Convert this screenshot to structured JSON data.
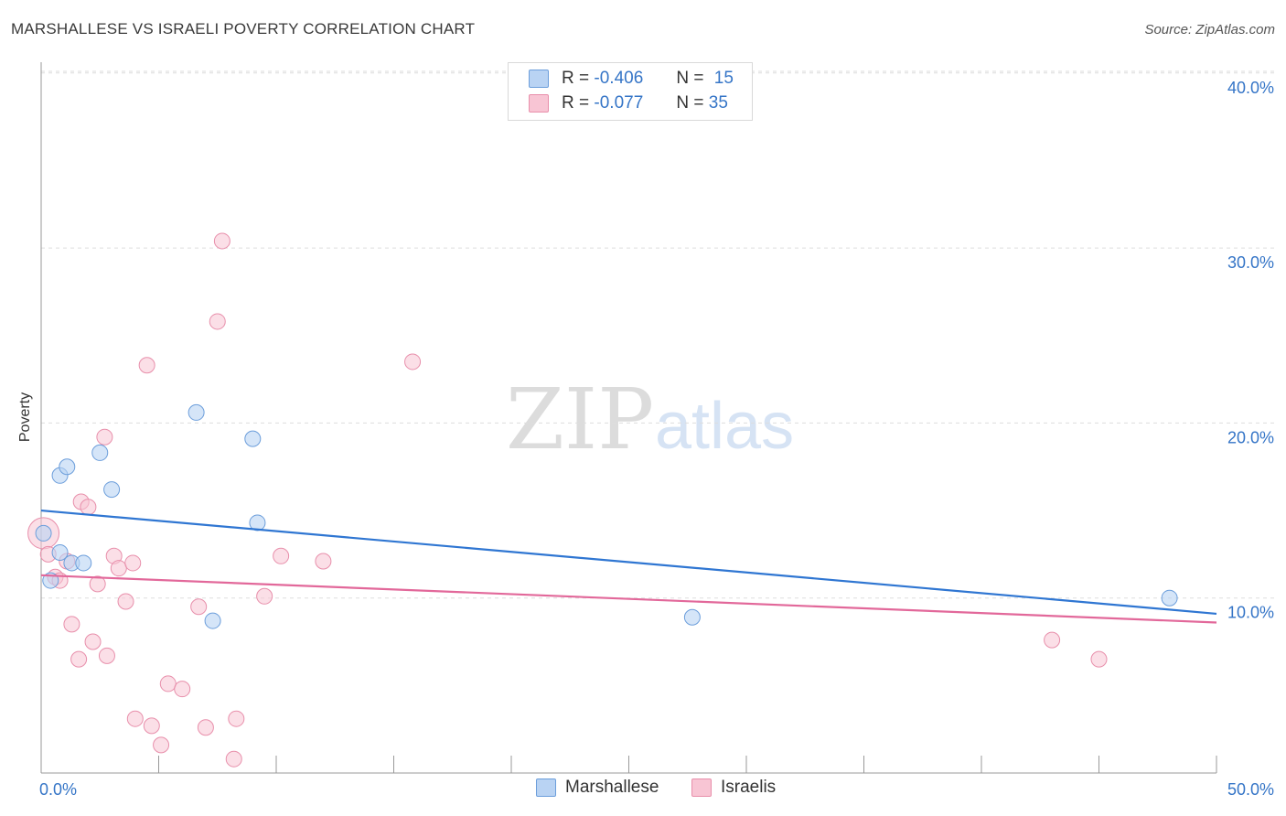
{
  "title": "MARSHALLESE VS ISRAELI POVERTY CORRELATION CHART",
  "source": "Source: ZipAtlas.com",
  "watermark": {
    "zip": "ZIP",
    "atlas": "atlas"
  },
  "legend": {
    "row1": {
      "r_label": "R =",
      "r_value": "-0.406",
      "n_label": "N =",
      "n_value": "15"
    },
    "row2": {
      "r_label": "R =",
      "r_value": "-0.077",
      "n_label": "N =",
      "n_value": "35"
    }
  },
  "bottom_legend": {
    "series1": "Marshallese",
    "series2": "Israelis"
  },
  "colors": {
    "blue_fill": "#b9d3f3",
    "blue_stroke": "#6c9edb",
    "blue_line": "#2f76d2",
    "pink_fill": "#f8c5d4",
    "pink_stroke": "#e88fab",
    "pink_line": "#e2689a",
    "tick_text": "#3575c7",
    "grid": "#dddddd"
  },
  "chart_data": {
    "type": "scatter",
    "title": "MARSHALLESE VS ISRAELI POVERTY CORRELATION CHART",
    "xlabel": "",
    "ylabel": "Poverty",
    "xlim": [
      0,
      50
    ],
    "ylim": [
      0,
      40
    ],
    "x_tick_labels": [
      "0.0%",
      "50.0%"
    ],
    "y_ticks": [
      10,
      20,
      30,
      40
    ],
    "y_tick_labels": [
      "10.0%",
      "20.0%",
      "30.0%",
      "40.0%"
    ],
    "series": [
      {
        "name": "Marshallese",
        "r": -0.406,
        "n": 15,
        "points": [
          {
            "x": 0.1,
            "y": 13.7
          },
          {
            "x": 0.4,
            "y": 11.0
          },
          {
            "x": 0.8,
            "y": 12.6
          },
          {
            "x": 0.8,
            "y": 17.0
          },
          {
            "x": 1.1,
            "y": 17.5
          },
          {
            "x": 1.3,
            "y": 12.0
          },
          {
            "x": 1.8,
            "y": 12.0
          },
          {
            "x": 2.5,
            "y": 18.3
          },
          {
            "x": 3.0,
            "y": 16.2
          },
          {
            "x": 6.6,
            "y": 20.6
          },
          {
            "x": 7.3,
            "y": 8.7
          },
          {
            "x": 9.0,
            "y": 19.1
          },
          {
            "x": 9.2,
            "y": 14.3
          },
          {
            "x": 27.7,
            "y": 8.9
          },
          {
            "x": 48.0,
            "y": 10.0
          }
        ],
        "trend": {
          "x": [
            0,
            50
          ],
          "y": [
            15.0,
            9.1
          ]
        }
      },
      {
        "name": "Israelis",
        "r": -0.077,
        "n": 35,
        "points": [
          {
            "x": 0.1,
            "y": 13.7,
            "large": true
          },
          {
            "x": 0.3,
            "y": 12.5
          },
          {
            "x": 0.6,
            "y": 11.2
          },
          {
            "x": 0.8,
            "y": 11.0
          },
          {
            "x": 1.1,
            "y": 12.1
          },
          {
            "x": 1.3,
            "y": 8.5
          },
          {
            "x": 1.6,
            "y": 6.5
          },
          {
            "x": 1.7,
            "y": 15.5
          },
          {
            "x": 2.0,
            "y": 15.2
          },
          {
            "x": 2.2,
            "y": 7.5
          },
          {
            "x": 2.4,
            "y": 10.8
          },
          {
            "x": 2.7,
            "y": 19.2
          },
          {
            "x": 2.8,
            "y": 6.7
          },
          {
            "x": 3.1,
            "y": 12.4
          },
          {
            "x": 3.3,
            "y": 11.7
          },
          {
            "x": 3.6,
            "y": 9.8
          },
          {
            "x": 3.9,
            "y": 12.0
          },
          {
            "x": 4.0,
            "y": 3.1
          },
          {
            "x": 4.5,
            "y": 23.3
          },
          {
            "x": 4.7,
            "y": 2.7
          },
          {
            "x": 5.1,
            "y": 1.6
          },
          {
            "x": 5.4,
            "y": 5.1
          },
          {
            "x": 6.0,
            "y": 4.8
          },
          {
            "x": 6.7,
            "y": 9.5
          },
          {
            "x": 7.0,
            "y": 2.6
          },
          {
            "x": 7.5,
            "y": 25.8
          },
          {
            "x": 7.7,
            "y": 30.4
          },
          {
            "x": 8.2,
            "y": 0.8
          },
          {
            "x": 8.3,
            "y": 3.1
          },
          {
            "x": 9.5,
            "y": 10.1
          },
          {
            "x": 10.2,
            "y": 12.4
          },
          {
            "x": 12.0,
            "y": 12.1
          },
          {
            "x": 15.8,
            "y": 23.5
          },
          {
            "x": 43.0,
            "y": 7.6
          },
          {
            "x": 45.0,
            "y": 6.5
          }
        ],
        "trend": {
          "x": [
            0,
            50
          ],
          "y": [
            11.3,
            8.6
          ]
        }
      }
    ]
  }
}
